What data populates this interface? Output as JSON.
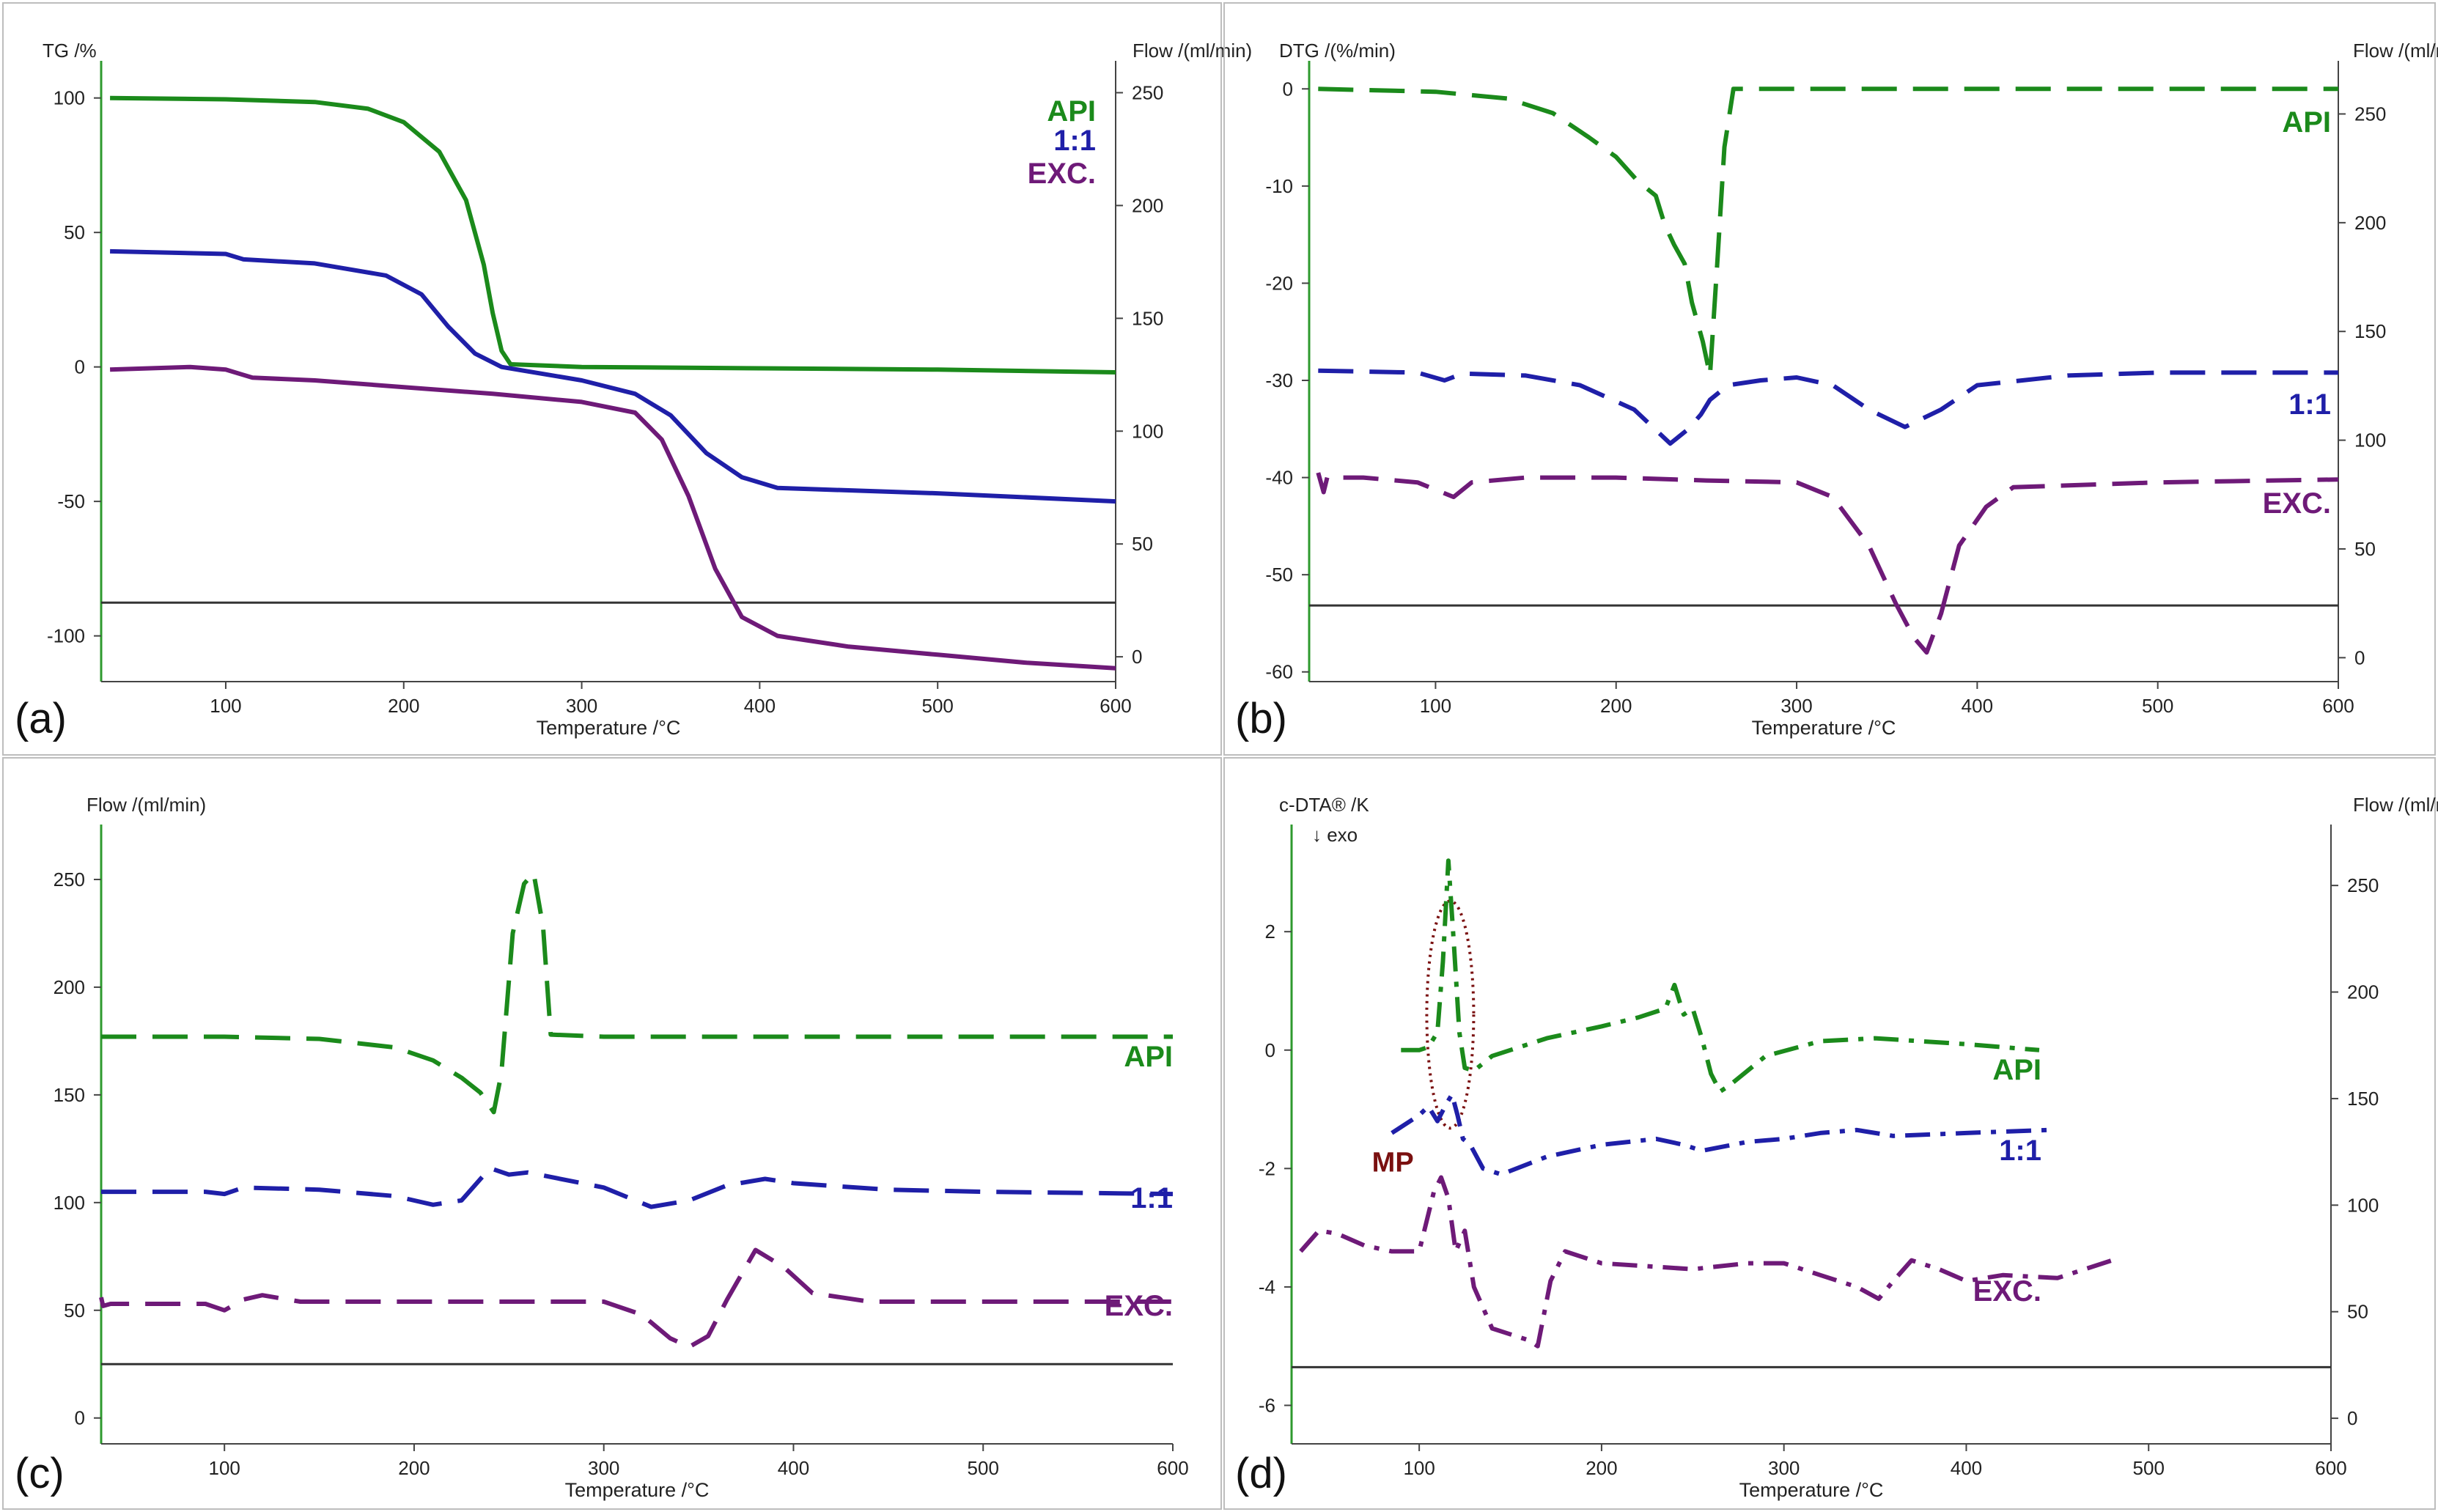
{
  "figure": {
    "colors": {
      "api": "#1b8a1b",
      "mix": "#1f1fa8",
      "exc": "#6e1a78",
      "flow": "#333333",
      "axis": "#2e9a2e",
      "mp": "#7a1010"
    }
  },
  "chart_data": [
    {
      "id": "a",
      "panel_label": "(a)",
      "type": "line",
      "left_label": "TG /%",
      "right_label": "Flow /(ml/min)",
      "xlabel": "Temperature /°C",
      "xlim": [
        30,
        600
      ],
      "ylim": [
        -117,
        107
      ],
      "y2lim": [
        -11,
        256
      ],
      "xticks": [
        100,
        200,
        300,
        400,
        500,
        600
      ],
      "yticks": [
        100,
        50,
        0,
        -50,
        -100
      ],
      "y2ticks": [
        250,
        200,
        150,
        100,
        50,
        0
      ],
      "series": [
        {
          "name": "API",
          "color": "#1b8a1b",
          "dash": "solid",
          "x": [
            35,
            100,
            150,
            180,
            200,
            220,
            235,
            245,
            250,
            255,
            260,
            300,
            400,
            500,
            600
          ],
          "y": [
            100,
            99.5,
            98.5,
            96,
            91,
            80,
            62,
            38,
            20,
            6,
            1,
            0,
            -0.5,
            -1,
            -2
          ]
        },
        {
          "name": "1:1",
          "color": "#1f1fa8",
          "dash": "solid",
          "x": [
            35,
            100,
            110,
            150,
            190,
            210,
            225,
            240,
            255,
            300,
            330,
            350,
            370,
            390,
            410,
            500,
            600
          ],
          "y": [
            43,
            42,
            40,
            38.5,
            34,
            27,
            15,
            5,
            0,
            -5,
            -10,
            -18,
            -32,
            -41,
            -45,
            -47,
            -50
          ]
        },
        {
          "name": "EXC.",
          "color": "#6e1a78",
          "dash": "solid",
          "x": [
            35,
            80,
            100,
            115,
            150,
            200,
            250,
            300,
            330,
            345,
            360,
            375,
            390,
            410,
            450,
            500,
            550,
            600
          ],
          "y": [
            -1,
            0,
            -1,
            -4,
            -5,
            -7.5,
            -10,
            -13,
            -17,
            -27,
            -48,
            -75,
            -93,
            -100,
            -104,
            -107,
            -110,
            -112
          ]
        }
      ],
      "flow": {
        "y2": 24
      },
      "legend": [
        "API",
        "1:1",
        "EXC."
      ],
      "legend_position": "top-right"
    },
    {
      "id": "b",
      "panel_label": "(b)",
      "type": "line",
      "left_label": "DTG /(%/min)",
      "right_label": "Flow /(ml/min)",
      "xlabel": "Temperature /°C",
      "xlim": [
        30,
        600
      ],
      "ylim": [
        -61,
        1
      ],
      "y2lim": [
        -11,
        266
      ],
      "xticks": [
        100,
        200,
        300,
        400,
        500,
        600
      ],
      "yticks": [
        0,
        -10,
        -20,
        -30,
        -40,
        -50,
        -60
      ],
      "y2ticks": [
        250,
        200,
        150,
        100,
        50,
        0
      ],
      "series": [
        {
          "name": "API",
          "color": "#1b8a1b",
          "dash": "dashed",
          "x": [
            35,
            100,
            140,
            165,
            185,
            200,
            212,
            222,
            227,
            232,
            238,
            242,
            245,
            248,
            252,
            256,
            260,
            265,
            300,
            400,
            500,
            600
          ],
          "y": [
            0,
            -0.3,
            -1,
            -2.5,
            -5,
            -7,
            -9.5,
            -11,
            -14,
            -16,
            -18,
            -22,
            -24,
            -26,
            -29.5,
            -18,
            -6,
            0,
            0,
            0,
            0,
            0
          ]
        },
        {
          "name": "1:1",
          "color": "#1f1fa8",
          "dash": "dashed",
          "x": [
            35,
            90,
            105,
            115,
            150,
            180,
            210,
            230,
            240,
            247,
            252,
            262,
            280,
            300,
            320,
            340,
            360,
            380,
            400,
            450,
            500,
            600
          ],
          "y": [
            -29,
            -29.2,
            -30,
            -29.3,
            -29.5,
            -30.5,
            -33,
            -36.5,
            -35,
            -33.5,
            -32,
            -30.5,
            -30,
            -29.7,
            -30.5,
            -33,
            -34.8,
            -33,
            -30.5,
            -29.5,
            -29.2,
            -29.2
          ]
        },
        {
          "name": "EXC.",
          "color": "#6e1a78",
          "dash": "dashed",
          "x": [
            35,
            38,
            40,
            60,
            90,
            110,
            120,
            150,
            200,
            250,
            300,
            320,
            340,
            355,
            365,
            372,
            380,
            390,
            405,
            420,
            500,
            600
          ],
          "y": [
            -39.5,
            -41.5,
            -40,
            -40,
            -40.5,
            -42,
            -40.5,
            -40,
            -40,
            -40.3,
            -40.5,
            -42,
            -47,
            -53,
            -56.5,
            -58,
            -54,
            -47,
            -43,
            -41,
            -40.5,
            -40.2
          ]
        }
      ],
      "flow": {
        "y2": 24
      },
      "legend": [
        "API",
        "1:1",
        "EXC."
      ],
      "legend_position": "right"
    },
    {
      "id": "c",
      "panel_label": "(c)",
      "type": "line",
      "left_label": "Flow /(ml/min)",
      "right_label": "",
      "xlabel": "Temperature /°C",
      "xlim": [
        35,
        600
      ],
      "ylim": [
        -12,
        267
      ],
      "y2lim": null,
      "xticks": [
        100,
        200,
        300,
        400,
        500,
        600
      ],
      "yticks": [
        250,
        200,
        150,
        100,
        50,
        0
      ],
      "y2ticks": [],
      "series": [
        {
          "name": "API",
          "color": "#1b8a1b",
          "dash": "dashed",
          "x": [
            35,
            100,
            150,
            190,
            210,
            225,
            235,
            242,
            246,
            252,
            258,
            263,
            268,
            272,
            300,
            400,
            500,
            600
          ],
          "y": [
            177,
            177,
            176,
            172,
            166,
            158,
            151,
            142,
            160,
            225,
            248,
            253,
            228,
            178,
            177,
            177,
            177,
            177
          ]
        },
        {
          "name": "1:1",
          "color": "#1f1fa8",
          "dash": "dashed",
          "x": [
            35,
            90,
            100,
            110,
            150,
            190,
            210,
            225,
            240,
            250,
            260,
            300,
            325,
            345,
            365,
            385,
            400,
            450,
            500,
            600
          ],
          "y": [
            105,
            105,
            104,
            107,
            106,
            103,
            99,
            101,
            116,
            113,
            114,
            107,
            98,
            101,
            108,
            111,
            109,
            106,
            105,
            104
          ]
        },
        {
          "name": "EXC.",
          "color": "#6e1a78",
          "dash": "dashed",
          "x": [
            35,
            36,
            40,
            90,
            100,
            110,
            120,
            140,
            200,
            300,
            320,
            335,
            345,
            355,
            365,
            380,
            395,
            410,
            440,
            500,
            600
          ],
          "y": [
            56,
            52,
            53,
            53,
            50,
            55,
            57,
            54,
            54,
            54,
            48,
            37,
            33,
            38,
            55,
            78,
            70,
            58,
            54,
            54,
            54
          ]
        }
      ],
      "flow": {
        "y": 25
      },
      "legend": [
        "API",
        "1:1",
        "EXC."
      ],
      "legend_position": "right"
    },
    {
      "id": "d",
      "panel_label": "(d)",
      "type": "line",
      "left_label": "c-DTA® /K",
      "right_label": "Flow /(ml/min)",
      "xlabel": "Temperature /°C",
      "note": "↓ exo",
      "annotation": "MP",
      "xlim": [
        30,
        600
      ],
      "ylim": [
        -6.65,
        3.5
      ],
      "y2lim": [
        -12,
        270
      ],
      "xticks": [
        100,
        200,
        300,
        400,
        500,
        600
      ],
      "yticks": [
        2,
        0,
        -2,
        -4,
        -6
      ],
      "y2ticks": [
        250,
        200,
        150,
        100,
        50,
        0
      ],
      "series": [
        {
          "name": "API",
          "color": "#1b8a1b",
          "dash": "dashdot",
          "x": [
            90,
            100,
            105,
            110,
            113,
            116,
            119,
            122,
            125,
            130,
            140,
            170,
            200,
            220,
            235,
            240,
            245,
            250,
            255,
            260,
            265,
            270,
            290,
            320,
            350,
            400,
            440
          ],
          "y": [
            0,
            0,
            0.05,
            0.3,
            1.5,
            3.2,
            1.8,
            0.3,
            -0.3,
            -0.35,
            -0.1,
            0.2,
            0.4,
            0.55,
            0.7,
            1.1,
            0.6,
            0.7,
            0.2,
            -0.4,
            -0.7,
            -0.6,
            -0.1,
            0.15,
            0.2,
            0.1,
            0
          ]
        },
        {
          "name": "1:1",
          "color": "#1f1fa8",
          "dash": "dashdot",
          "x": [
            85,
            100,
            105,
            110,
            115,
            118,
            121,
            124,
            128,
            135,
            145,
            170,
            200,
            230,
            245,
            255,
            280,
            300,
            320,
            340,
            360,
            400,
            445
          ],
          "y": [
            -1.4,
            -1.1,
            -0.95,
            -1.2,
            -0.9,
            -0.75,
            -1.1,
            -1.5,
            -1.6,
            -2,
            -2.1,
            -1.8,
            -1.6,
            -1.5,
            -1.6,
            -1.7,
            -1.55,
            -1.5,
            -1.4,
            -1.35,
            -1.45,
            -1.4,
            -1.35
          ]
        },
        {
          "name": "EXC.",
          "color": "#6e1a78",
          "dash": "dashdot",
          "x": [
            35,
            45,
            55,
            70,
            85,
            100,
            108,
            112,
            116,
            120,
            125,
            130,
            140,
            160,
            165,
            172,
            180,
            200,
            250,
            280,
            300,
            320,
            340,
            352,
            360,
            370,
            385,
            400,
            420,
            450,
            480
          ],
          "y": [
            -3.4,
            -3.05,
            -3.1,
            -3.3,
            -3.4,
            -3.4,
            -2.4,
            -2.15,
            -2.5,
            -3.4,
            -3.05,
            -4,
            -4.7,
            -4.9,
            -5,
            -3.9,
            -3.4,
            -3.6,
            -3.7,
            -3.6,
            -3.6,
            -3.8,
            -4,
            -4.2,
            -3.9,
            -3.55,
            -3.7,
            -3.9,
            -3.8,
            -3.85,
            -3.55
          ]
        }
      ],
      "flow": {
        "y2": 24
      },
      "legend": [
        "API",
        "1:1",
        "EXC."
      ],
      "legend_position": "right"
    }
  ]
}
